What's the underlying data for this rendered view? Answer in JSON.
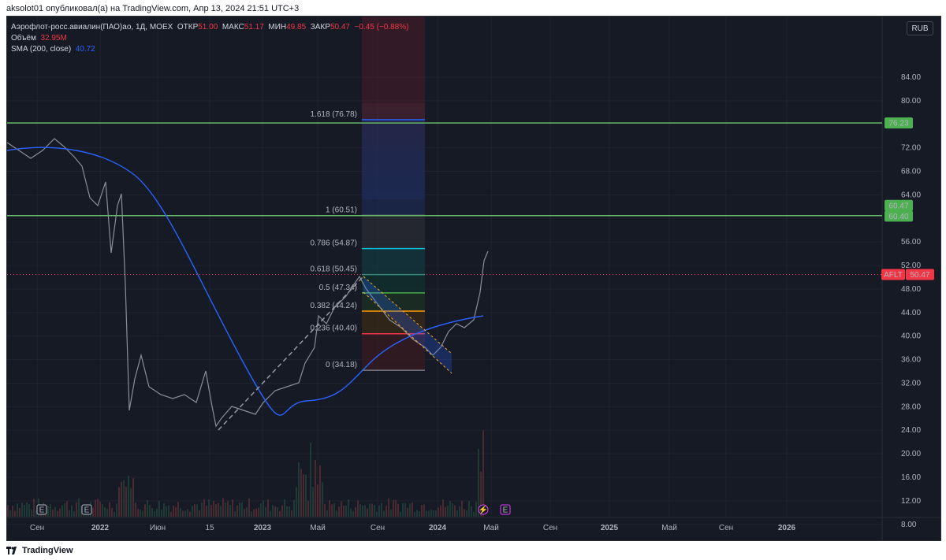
{
  "header": {
    "publish_text": "aksolot01 опубликовал(а) на TradingView.com, Апр 13, 2024 21:51 UTC+3"
  },
  "legend": {
    "symbol_line": "Аэрофлот-росс.авиалин(ПАО)ао, 1Д, MOEX",
    "open_label": "ОТКР",
    "open_value": "51.00",
    "high_label": "МАКС",
    "high_value": "51.17",
    "low_label": "МИН",
    "low_value": "49.85",
    "close_label": "ЗАКР",
    "close_value": "50.47",
    "change": "−0.45 (−0.88%)",
    "volume_label": "Объём",
    "volume_value": "32.95M",
    "sma_label": "SMA (200, close)",
    "sma_value": "40.72"
  },
  "currency_button": "RUB",
  "price_axis": {
    "ticks": [
      "84.00",
      "80.00",
      "72.00",
      "68.00",
      "64.00",
      "56.00",
      "52.00",
      "48.00",
      "44.00",
      "40.00",
      "36.00",
      "32.00",
      "28.00",
      "24.00",
      "20.00",
      "16.00",
      "12.00",
      "8.00"
    ],
    "markers": [
      {
        "text": "76.23",
        "color": "#4caf50"
      },
      {
        "text": "60.47",
        "color": "#4caf50"
      },
      {
        "text": "60.40",
        "color": "#4caf50"
      }
    ],
    "ticker_label": "AFLT",
    "last_price": "50.47"
  },
  "time_axis": {
    "labels": [
      "Сен",
      "2022",
      "Июн",
      "15",
      "2023",
      "Май",
      "Сен",
      "2024",
      "Май",
      "Сен",
      "2025",
      "Май",
      "Сен",
      "2026"
    ]
  },
  "fib_levels": [
    {
      "label": "1.618 (76.78)",
      "color": "#2962ff"
    },
    {
      "label": "1 (60.51)",
      "color": "#787b86"
    },
    {
      "label": "0.786 (54.87)",
      "color": "#00bcd4"
    },
    {
      "label": "0.618 (50.45)",
      "color": "#089981"
    },
    {
      "label": "0.5 (47.34)",
      "color": "#4caf50"
    },
    {
      "label": "0.382 (44.24)",
      "color": "#ff9800"
    },
    {
      "label": "0.236 (40.40)",
      "color": "#f23645"
    },
    {
      "label": "0 (34.18)",
      "color": "#787b86"
    }
  ],
  "event_markers": [
    "E",
    "E",
    "E"
  ],
  "footer": {
    "brand": "TradingView"
  }
}
